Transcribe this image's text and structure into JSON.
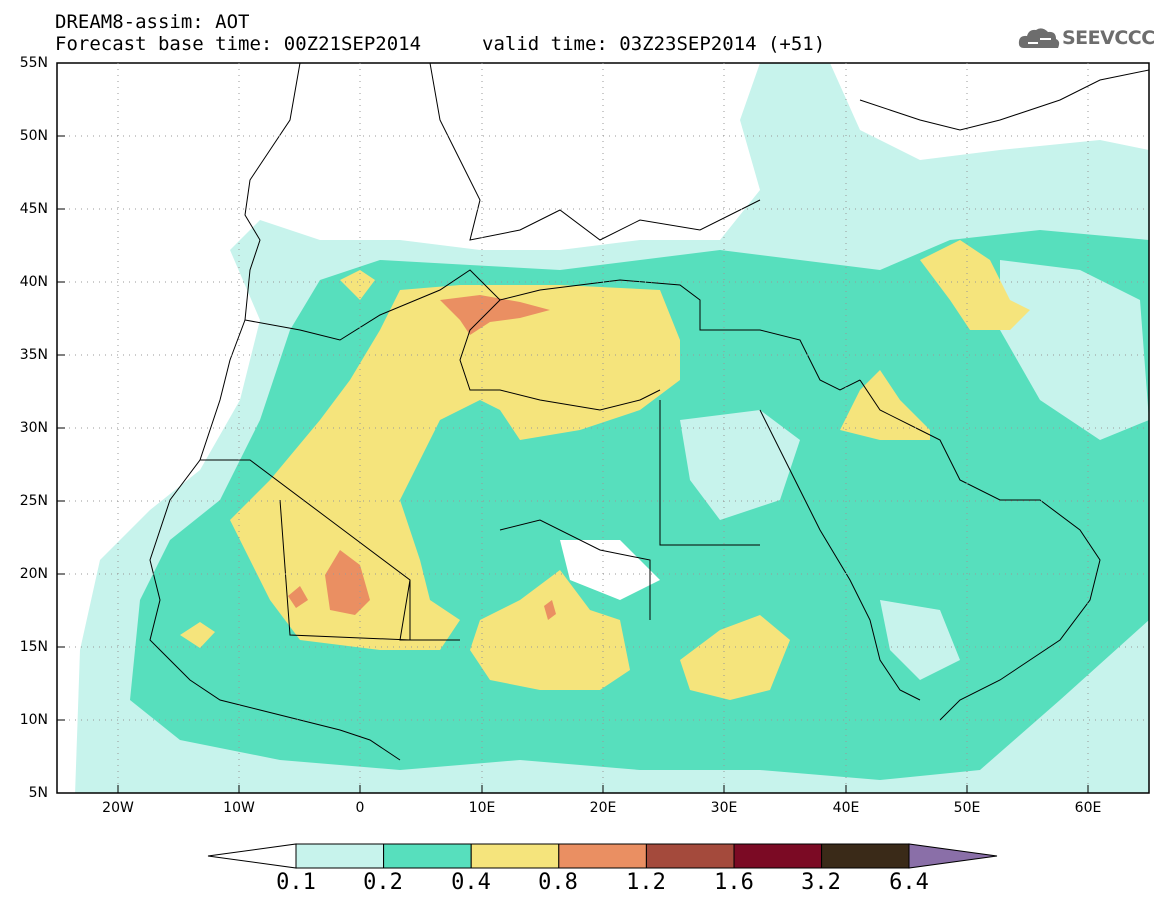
{
  "header": {
    "title": "DREAM8-assim: AOT",
    "base_time": "Forecast base time: 00Z21SEP2014",
    "valid_time": "valid time: 03Z23SEP2014 (+51)"
  },
  "logo": {
    "name": "cloud-logo-icon",
    "text": "SEEVCCC"
  },
  "map": {
    "lat_labels": [
      "55N",
      "50N",
      "45N",
      "40N",
      "35N",
      "30N",
      "25N",
      "20N",
      "15N",
      "10N",
      "5N"
    ],
    "lon_labels": [
      "20W",
      "10W",
      "0",
      "10E",
      "20E",
      "30E",
      "40E",
      "50E",
      "60E"
    ],
    "lat_range": [
      5,
      55
    ],
    "lon_range": [
      -25,
      65
    ]
  },
  "colorbar": {
    "labels": [
      "0.1",
      "0.2",
      "0.4",
      "0.8",
      "1.2",
      "1.6",
      "3.2",
      "6.4"
    ],
    "colors": [
      "#c7f3ec",
      "#57dfbd",
      "#f5e47c",
      "#ea8f62",
      "#a44a3c",
      "#7b0a24",
      "#3a2a18",
      "#8a6fa8"
    ],
    "under_color": "#ffffff",
    "colors_count": 8
  }
}
